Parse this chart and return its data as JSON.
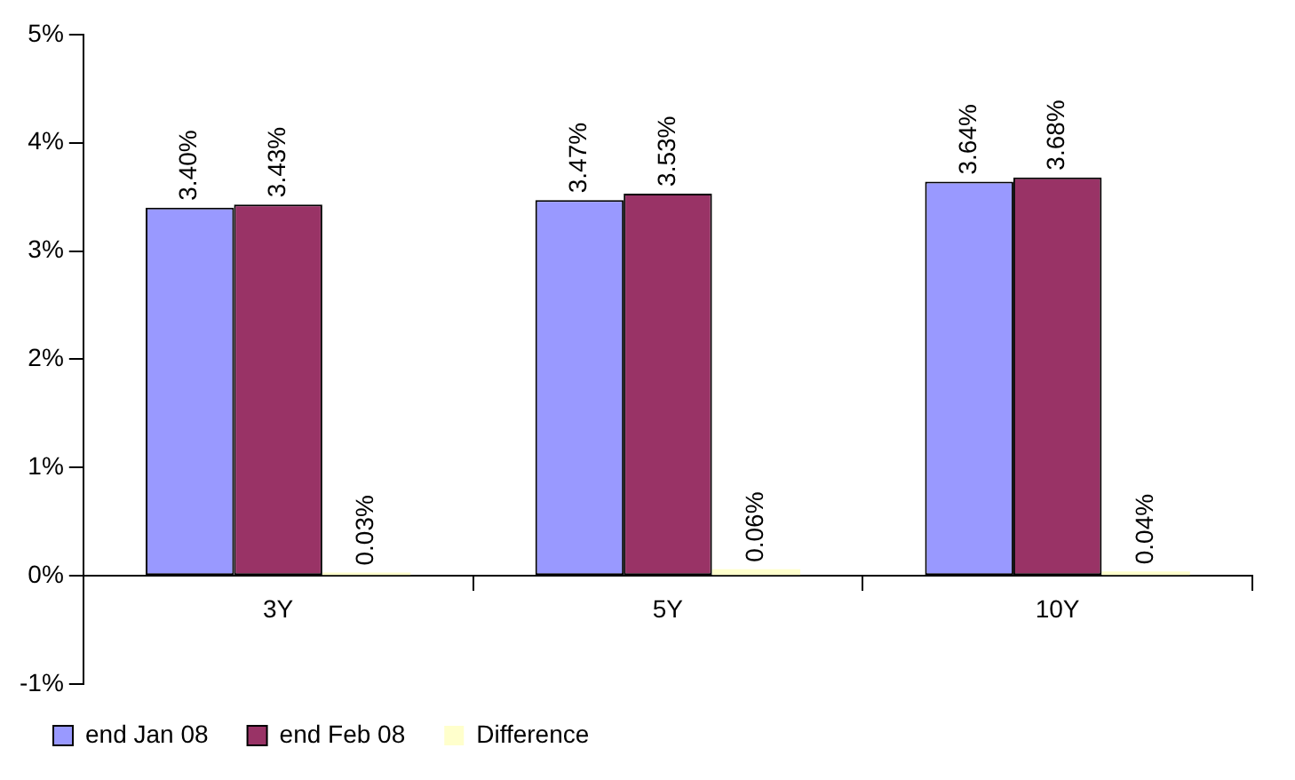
{
  "chart_data": {
    "type": "bar",
    "categories": [
      "3Y",
      "5Y",
      "10Y"
    ],
    "series": [
      {
        "name": "end Jan 08",
        "color": "#9999ff",
        "values": [
          3.4,
          3.47,
          3.64
        ],
        "value_labels": [
          "3.40%",
          "3.47%",
          "3.64%"
        ]
      },
      {
        "name": "end Feb 08",
        "color": "#993366",
        "values": [
          3.43,
          3.53,
          3.68
        ],
        "value_labels": [
          "3.43%",
          "3.53%",
          "3.68%"
        ]
      },
      {
        "name": "Difference",
        "color": "#ffffcc",
        "values": [
          0.03,
          0.06,
          0.04
        ],
        "value_labels": [
          "0.03%",
          "0.06%",
          "0.04%"
        ]
      }
    ],
    "ylim": [
      -1,
      5
    ],
    "yticks": [
      {
        "value": -1,
        "label": "-1%"
      },
      {
        "value": 0,
        "label": "0%"
      },
      {
        "value": 1,
        "label": "1%"
      },
      {
        "value": 2,
        "label": "2%"
      },
      {
        "value": 3,
        "label": "3%"
      },
      {
        "value": 4,
        "label": "4%"
      },
      {
        "value": 5,
        "label": "5%"
      }
    ],
    "grid": false,
    "legend": "bottom left"
  }
}
